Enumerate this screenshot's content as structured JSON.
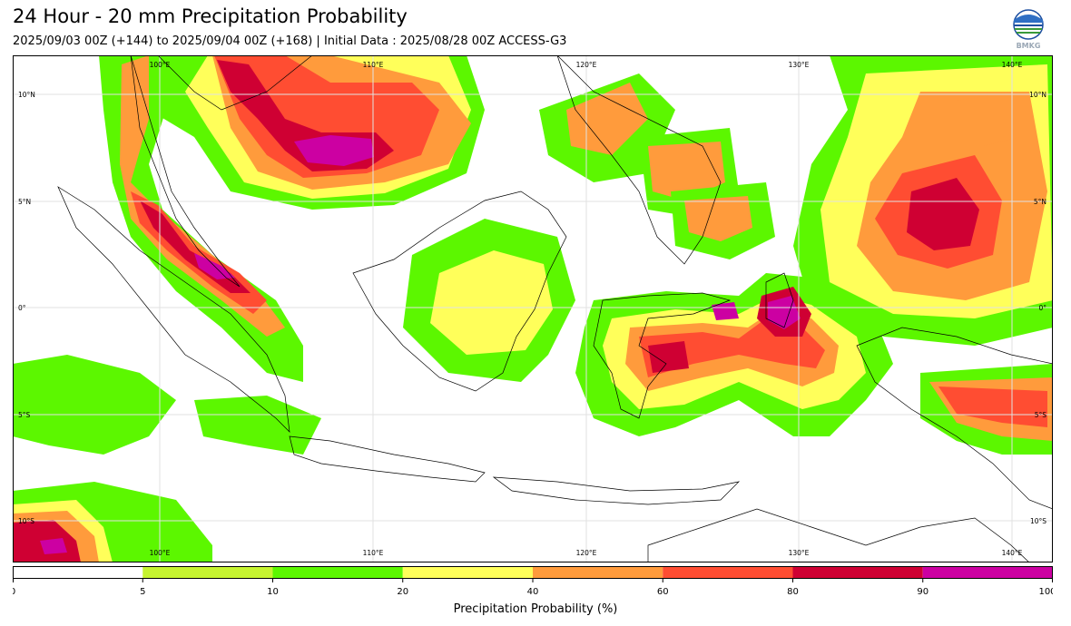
{
  "title": "24 Hour - 20 mm Precipitation Probability",
  "subtitle": "2025/09/03 00Z (+144) to 2025/09/04 00Z (+168) | Initial Data : 2025/08/28 00Z ACCESS-G3",
  "logo": {
    "text": "BMKG",
    "icon": "bmkg-globe-logo"
  },
  "map": {
    "lon_range": [
      95,
      143
    ],
    "lat_range": [
      -12,
      12
    ],
    "lon_labels_top": [
      "100°E",
      "110°E",
      "120°E",
      "130°E",
      "140°E"
    ],
    "lon_labels_bottom": [
      "100°E",
      "110°E",
      "120°E",
      "130°E",
      "140°E"
    ],
    "lat_labels_left": [
      "10°N",
      "5°N",
      "0°",
      "5°S",
      "10°S"
    ],
    "lat_labels_right": [
      "10°N",
      "5°N",
      "0°",
      "5°S",
      "10°S"
    ],
    "grid": true
  },
  "colorbar": {
    "label": "Precipitation Probability (%)",
    "ticks": [
      "0",
      "5",
      "10",
      "20",
      "40",
      "60",
      "80",
      "90",
      "100"
    ],
    "colors": [
      "#ffffff",
      "#c6f430",
      "#5cf700",
      "#ffff5a",
      "#ff9b3c",
      "#ff4d32",
      "#cf0033",
      "#cc00a2"
    ]
  }
}
